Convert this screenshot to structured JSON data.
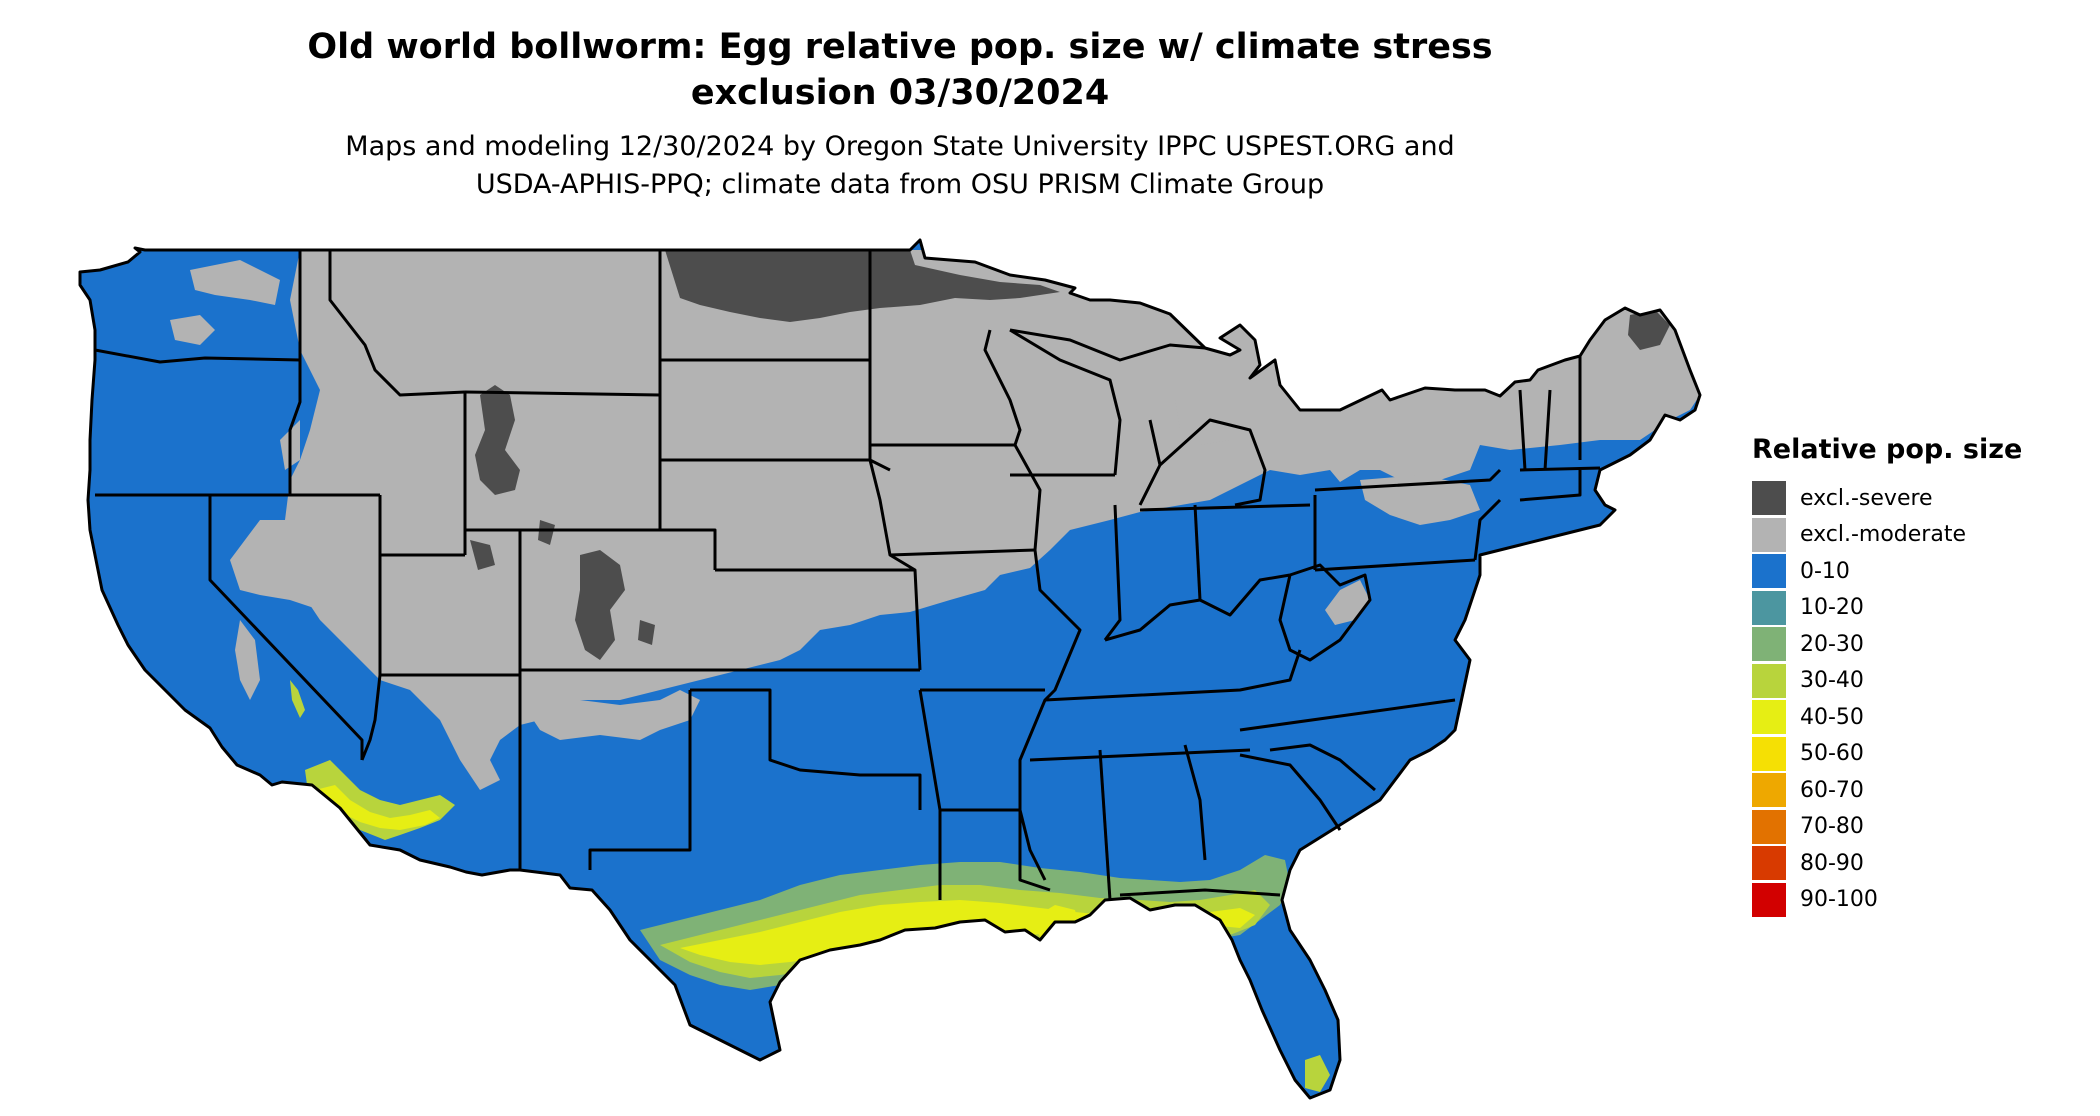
{
  "title": {
    "line1": "Old world bollworm: Egg relative pop. size w/ climate stress",
    "line2": "exclusion 03/30/2024"
  },
  "subtitle": {
    "line1": "Maps and modeling 12/30/2024 by Oregon State University IPPC USPEST.ORG and",
    "line2": "USDA-APHIS-PPQ; climate data from OSU PRISM Climate Group"
  },
  "legend": {
    "title": "Relative pop. size",
    "items": [
      {
        "label": "excl.-severe",
        "color": "#4d4d4d"
      },
      {
        "label": "excl.-moderate",
        "color": "#b3b3b3"
      },
      {
        "label": "0-10",
        "color": "#1b72cc"
      },
      {
        "label": "10-20",
        "color": "#4c96a0"
      },
      {
        "label": "20-30",
        "color": "#7fb276"
      },
      {
        "label": "30-40",
        "color": "#b8d43c"
      },
      {
        "label": "40-50",
        "color": "#e6ee14"
      },
      {
        "label": "50-60",
        "color": "#f5e004"
      },
      {
        "label": "60-70",
        "color": "#eea800"
      },
      {
        "label": "70-80",
        "color": "#e27200"
      },
      {
        "label": "80-90",
        "color": "#d83a00"
      },
      {
        "label": "90-100",
        "color": "#d20000"
      }
    ]
  }
}
